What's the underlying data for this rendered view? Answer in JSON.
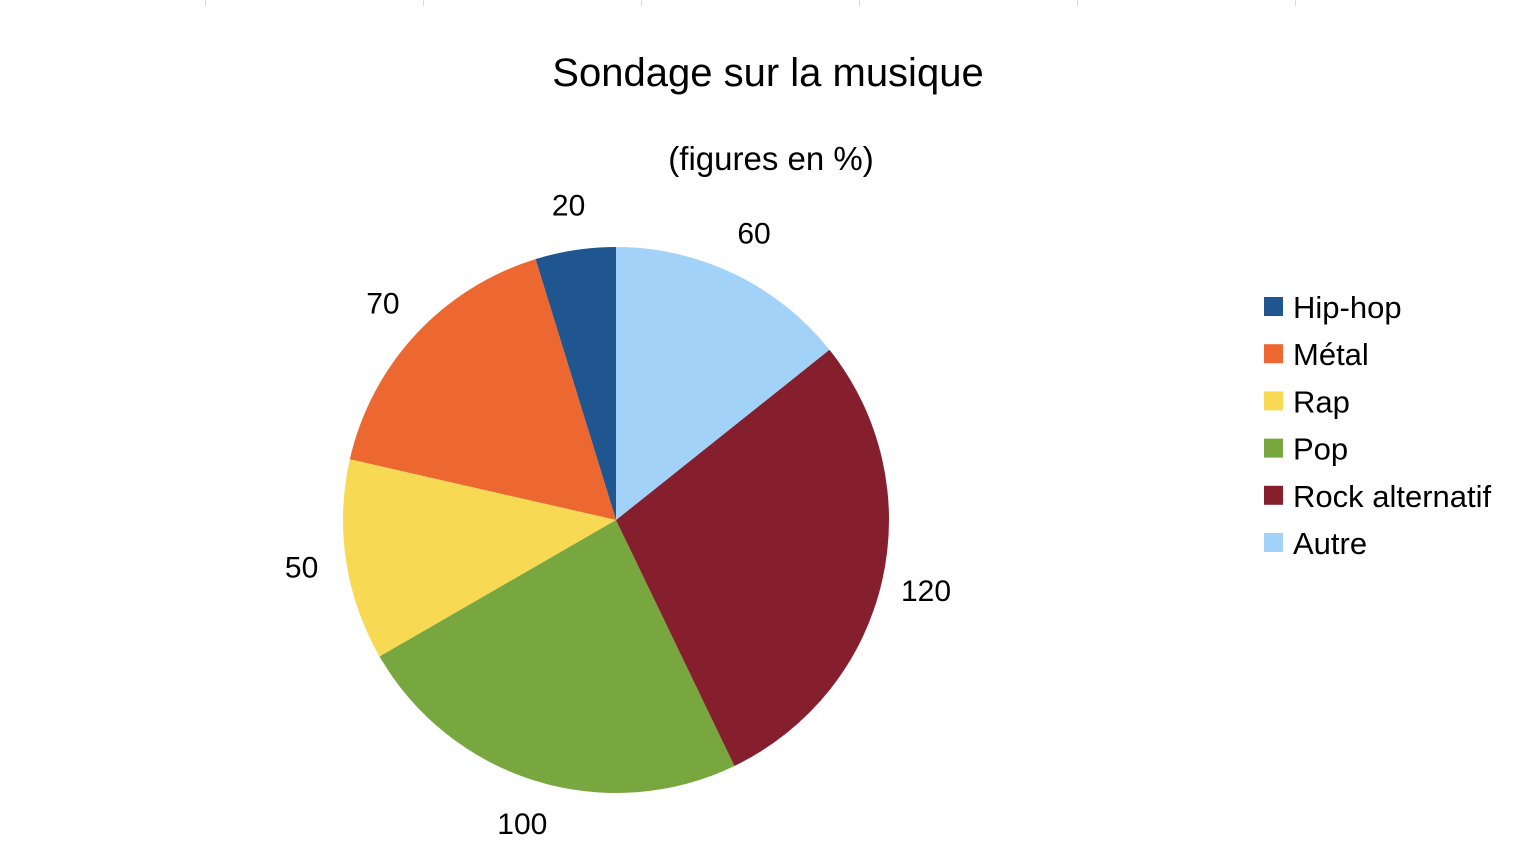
{
  "chart_data": {
    "type": "pie",
    "title": "Sondage sur la musique",
    "subtitle": "(figures en %)",
    "categories": [
      "Hip-hop",
      "Métal",
      "Rap",
      "Pop",
      "Rock alternatif",
      "Autre"
    ],
    "values": [
      20,
      70,
      50,
      100,
      120,
      60
    ],
    "colors": [
      "#1f5690",
      "#ed6730",
      "#f8d953",
      "#78a73f",
      "#851f2e",
      "#a3d2f9"
    ],
    "data_labels": [
      "20",
      "70",
      "50",
      "100",
      "120",
      "60"
    ],
    "start_angle_deg": 0,
    "direction": "counter-clockwise",
    "legend_position": "right",
    "grid": false
  }
}
